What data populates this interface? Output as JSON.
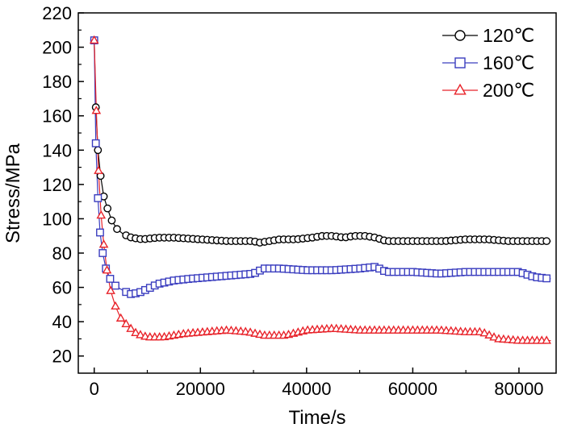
{
  "chart_data": {
    "type": "line",
    "title": "",
    "xlabel": "Time/s",
    "ylabel": "Stress/MPa",
    "xlim": [
      -3000,
      87000
    ],
    "ylim": [
      10,
      220
    ],
    "x_ticks": [
      0,
      20000,
      40000,
      60000,
      80000
    ],
    "x_tick_labels": [
      "0",
      "20000",
      "40000",
      "60000",
      "80000"
    ],
    "y_ticks": [
      20,
      40,
      60,
      80,
      100,
      120,
      140,
      160,
      180,
      200,
      220
    ],
    "y_tick_labels": [
      "20",
      "40",
      "60",
      "80",
      "100",
      "120",
      "140",
      "160",
      "180",
      "200",
      "220"
    ],
    "grid": false,
    "legend_position": "top-right",
    "series": [
      {
        "name": "120℃",
        "color": "#000000",
        "marker": "circle",
        "x": [
          0,
          300,
          700,
          1200,
          1800,
          2500,
          3300,
          4300,
          5500,
          7000,
          9000,
          12000,
          15000,
          20000,
          25000,
          28000,
          30000,
          31000,
          33000,
          35000,
          38000,
          41000,
          43000,
          45000,
          47000,
          49000,
          51000,
          53000,
          55000,
          58000,
          62000,
          66000,
          70000,
          74000,
          78000,
          82000,
          86000
        ],
        "y": [
          204,
          165,
          140,
          125,
          113,
          106,
          99,
          94,
          91,
          89,
          88,
          89,
          89,
          88,
          87,
          87,
          87,
          86,
          87,
          88,
          88,
          89,
          90,
          90,
          89,
          90,
          90,
          89,
          87,
          87,
          87,
          87,
          88,
          88,
          87,
          87,
          87
        ]
      },
      {
        "name": "160℃",
        "color": "#3a3dbf",
        "marker": "square",
        "x": [
          0,
          300,
          700,
          1100,
          1600,
          2200,
          3000,
          4000,
          5500,
          7000,
          8500,
          10000,
          12000,
          15000,
          18000,
          22000,
          26000,
          30000,
          32000,
          35000,
          40000,
          45000,
          50000,
          53000,
          55000,
          60000,
          65000,
          70000,
          75000,
          80000,
          83000,
          86000
        ],
        "y": [
          204,
          144,
          112,
          92,
          80,
          71,
          65,
          61,
          58,
          56,
          57,
          59,
          62,
          64,
          65,
          66,
          67,
          68,
          71,
          71,
          70,
          70,
          71,
          72,
          69,
          69,
          68,
          69,
          69,
          69,
          66,
          65
        ]
      },
      {
        "name": "200℃",
        "color": "#e8232a",
        "marker": "triangle",
        "x": [
          0,
          400,
          800,
          1300,
          1800,
          2400,
          3100,
          4000,
          5000,
          6500,
          8000,
          10000,
          13000,
          17000,
          21000,
          25000,
          29000,
          32000,
          36000,
          40000,
          45000,
          50000,
          55000,
          60000,
          65000,
          70000,
          73000,
          76000,
          80000,
          86000
        ],
        "y": [
          204,
          163,
          128,
          102,
          85,
          70,
          58,
          49,
          42,
          37,
          33,
          31,
          31,
          33,
          34,
          35,
          34,
          32,
          32,
          35,
          36,
          35,
          35,
          35,
          35,
          34,
          34,
          30,
          29,
          29
        ]
      }
    ]
  }
}
